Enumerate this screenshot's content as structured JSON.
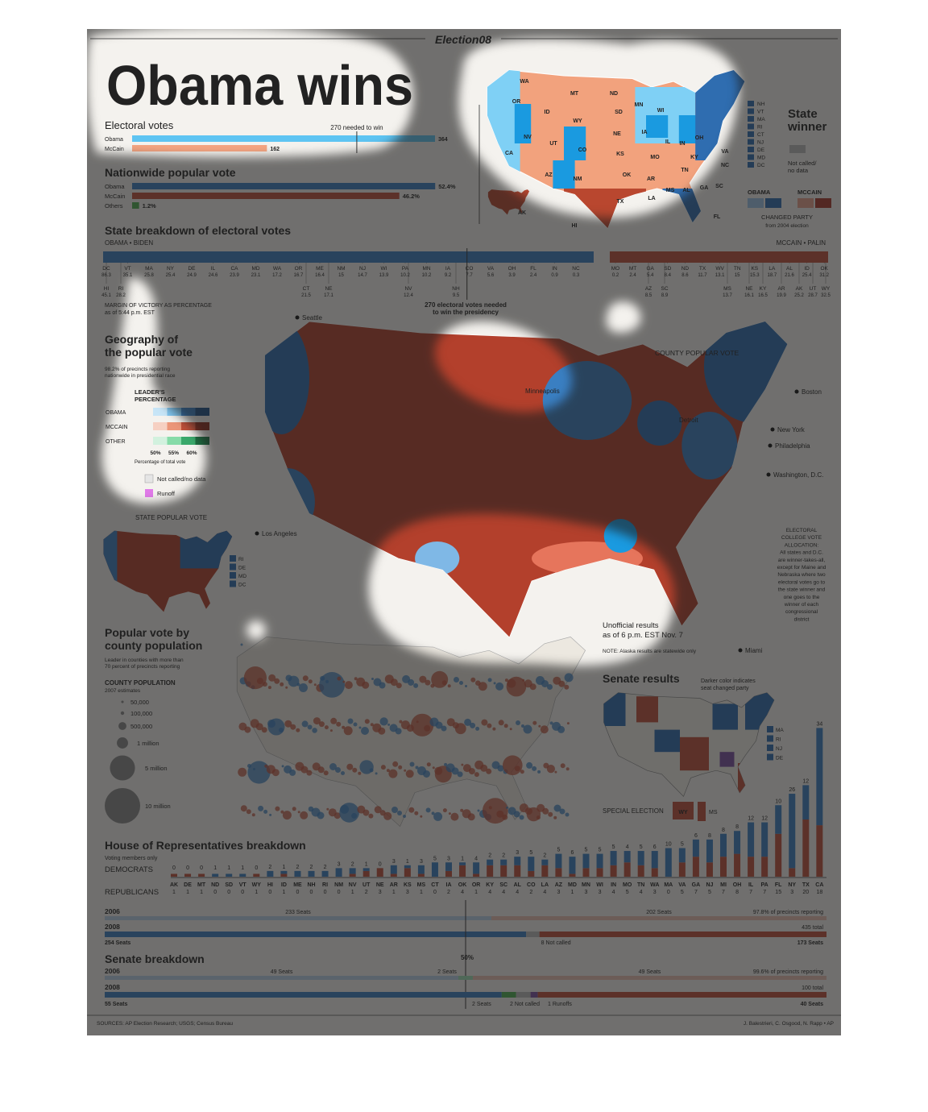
{
  "header": {
    "brand": "Election08",
    "title": "Obama wins"
  },
  "electoral_votes": {
    "title": "Electoral votes",
    "threshold_label": "270 needed to win",
    "threshold": 270,
    "series": [
      {
        "name": "Obama",
        "value": 364,
        "color": "#5ec4f2"
      },
      {
        "name": "McCain",
        "value": 162,
        "color": "#f4a582"
      }
    ]
  },
  "popular_vote": {
    "title": "Nationwide popular vote",
    "series": [
      {
        "name": "Obama",
        "value": 52.4,
        "value_label": "52.4%",
        "color": "#3a7fc2"
      },
      {
        "name": "McCain",
        "value": 46.2,
        "value_label": "46.2%",
        "color": "#c0503a"
      },
      {
        "name": "Others",
        "value": 1.2,
        "value_label": "1.2%",
        "color": "#4caf50"
      }
    ]
  },
  "state_winner": {
    "title": [
      "State",
      "winner"
    ],
    "not_called": [
      "Not called/",
      "no data"
    ],
    "obama": "OBAMA",
    "mccain": "MCCAIN",
    "changed": "CHANGED PARTY",
    "changed_note": "from 2004 election",
    "small_states": [
      "NH",
      "VT",
      "MA",
      "RI",
      "CT",
      "NJ",
      "DE",
      "MD",
      "DC"
    ],
    "map_labels": [
      "WA",
      "OR",
      "CA",
      "NV",
      "ID",
      "MT",
      "WY",
      "UT",
      "AZ",
      "CO",
      "NM",
      "ND",
      "SD",
      "NE",
      "KS",
      "OK",
      "TX",
      "MN",
      "IA",
      "MO",
      "AR",
      "LA",
      "WI",
      "IL",
      "IN",
      "OH",
      "KY",
      "TN",
      "MS",
      "AL",
      "GA",
      "FL",
      "SC",
      "NC",
      "VA",
      "AK",
      "HI"
    ]
  },
  "state_breakdown": {
    "title": "State breakdown of electoral votes",
    "obama_ticket": "OBAMA • BIDEN",
    "mccain_ticket": "MCCAIN • PALIN",
    "margin_note": "MARGIN OF VICTORY AS PERCENTAGE",
    "time_note": "as of 5:44 p.m. EST",
    "needed_label": [
      "270 electoral votes needed",
      "to win the presidency"
    ],
    "obama_states": [
      {
        "state": "DC",
        "margin": 86.3
      },
      {
        "state": "VT",
        "margin": 35.1
      },
      {
        "state": "MA",
        "margin": 25.8
      },
      {
        "state": "NY",
        "margin": 25.4
      },
      {
        "state": "DE",
        "margin": 24.9
      },
      {
        "state": "IL",
        "margin": 24.6
      },
      {
        "state": "CA",
        "margin": 23.9
      },
      {
        "state": "MD",
        "margin": 23.1
      },
      {
        "state": "WA",
        "margin": 17.2
      },
      {
        "state": "OR",
        "margin": 16.7
      },
      {
        "state": "ME",
        "margin": 16.4
      },
      {
        "state": "NM",
        "margin": 15
      },
      {
        "state": "NJ",
        "margin": 14.7
      },
      {
        "state": "WI",
        "margin": 13.9
      },
      {
        "state": "PA",
        "margin": 10.2
      },
      {
        "state": "MN",
        "margin": 10.2
      },
      {
        "state": "IA",
        "margin": 9.2
      },
      {
        "state": "CO",
        "margin": 7.7
      },
      {
        "state": "VA",
        "margin": 5.6
      },
      {
        "state": "OH",
        "margin": 3.9
      },
      {
        "state": "FL",
        "margin": 2.4
      },
      {
        "state": "IN",
        "margin": 0.9
      },
      {
        "state": "NC",
        "margin": 0.3
      }
    ],
    "obama_states_lower": [
      {
        "state": "HI",
        "margin": 45.1
      },
      {
        "state": "RI",
        "margin": 28.2
      },
      {
        "state": "CT",
        "margin": 21.5
      },
      {
        "state": "NE",
        "margin": 17.1
      },
      {
        "state": "NV",
        "margin": 12.4
      },
      {
        "state": "NH",
        "margin": 9.5
      }
    ],
    "mccain_states": [
      {
        "state": "MO",
        "margin": 0.2
      },
      {
        "state": "MT",
        "margin": 2.4
      },
      {
        "state": "GA",
        "margin": 5.4
      },
      {
        "state": "SD",
        "margin": 8.4
      },
      {
        "state": "ND",
        "margin": 8.6
      },
      {
        "state": "TX",
        "margin": 11.7
      },
      {
        "state": "WV",
        "margin": 13.1
      },
      {
        "state": "TN",
        "margin": 15
      },
      {
        "state": "KS",
        "margin": 15.3
      },
      {
        "state": "LA",
        "margin": 18.7
      },
      {
        "state": "AL",
        "margin": 21.6
      },
      {
        "state": "ID",
        "margin": 25.4
      },
      {
        "state": "OK",
        "margin": 31.2
      }
    ],
    "mccain_states_lower": [
      {
        "state": "AZ",
        "margin": 8.5
      },
      {
        "state": "SC",
        "margin": 8.9
      },
      {
        "state": "MS",
        "margin": 13.7
      },
      {
        "state": "NE",
        "margin": 16.1
      },
      {
        "state": "KY",
        "margin": 16.5
      },
      {
        "state": "AR",
        "margin": 19.9
      },
      {
        "state": "AK",
        "margin": 25.2
      },
      {
        "state": "UT",
        "margin": 28.7
      },
      {
        "state": "WY",
        "margin": 32.5
      }
    ]
  },
  "geography": {
    "title": [
      "Geography of",
      "the popular vote"
    ],
    "note": [
      "98.2% of precincts reporting",
      "nationwide in presidential race"
    ],
    "legend_title": [
      "LEADER'S",
      "PERCENTAGE"
    ],
    "rows": [
      "OBAMA",
      "MCCAIN",
      "OTHER"
    ],
    "ticks": [
      "50%",
      "55%",
      "60%"
    ],
    "tick_caption": "Percentage of total vote",
    "not_called": "Not called/no data",
    "runoff": "Runoff",
    "state_popular_vote": "STATE POPULAR VOTE",
    "small_states": [
      "RI",
      "DE",
      "MD",
      "DC"
    ]
  },
  "county_map": {
    "title": "COUNTY POPULAR VOTE",
    "cities": [
      "Seattle",
      "Minneapolis",
      "Detroit",
      "Boston",
      "New York",
      "Philadelphia",
      "Washington, D.C.",
      "Los Angeles",
      "Miami"
    ],
    "allocation": [
      "ELECTORAL",
      "COLLEGE VOTE",
      "ALLOCATION:",
      "All states and D.C.",
      "are winner-takes-all,",
      "except for Maine and",
      "Nebraska where two",
      "electoral votes go to",
      "the state winner and",
      "one goes to the",
      "winner of each",
      "congressional",
      "district"
    ],
    "unofficial": [
      "Unofficial results",
      "as of 6 p.m. EST Nov. 7"
    ],
    "alaska_note": "NOTE: Alaska results are statewide only"
  },
  "county_population": {
    "title": [
      "Popular vote by",
      "county population"
    ],
    "note": [
      "Leader in counties with more than",
      "70 percent of precincts reporting"
    ],
    "legend_title": "COUNTY POPULATION",
    "legend_subtitle": "2007 estimates",
    "sizes": [
      {
        "value": 50000,
        "label": "50,000"
      },
      {
        "value": 100000,
        "label": "100,000"
      },
      {
        "value": 500000,
        "label": "500,000"
      },
      {
        "value": 1000000,
        "label": "1 million"
      },
      {
        "value": 5000000,
        "label": "5 million"
      },
      {
        "value": 10000000,
        "label": "10 million"
      }
    ]
  },
  "senate_results": {
    "title": "Senate results",
    "note": [
      "Darker color indicates",
      "seat changed party"
    ],
    "small_states": [
      "MA",
      "RI",
      "NJ",
      "DE"
    ],
    "special": "SPECIAL ELECTION",
    "special_states": [
      "WY",
      "MS"
    ]
  },
  "house": {
    "title": "House of Representatives breakdown",
    "subtitle": "Voting members only",
    "dem_label": "DEMOCRATS",
    "rep_label": "REPUBLICANS",
    "dem_color": "#3a7fc2",
    "rep_color": "#c0503a",
    "states": [
      {
        "state": "AK",
        "dem": 0,
        "rep": 1
      },
      {
        "state": "DE",
        "dem": 0,
        "rep": 1
      },
      {
        "state": "MT",
        "dem": 0,
        "rep": 1
      },
      {
        "state": "ND",
        "dem": 1,
        "rep": 0
      },
      {
        "state": "SD",
        "dem": 1,
        "rep": 0
      },
      {
        "state": "VT",
        "dem": 1,
        "rep": 0
      },
      {
        "state": "WY",
        "dem": 0,
        "rep": 1
      },
      {
        "state": "HI",
        "dem": 2,
        "rep": 0
      },
      {
        "state": "ID",
        "dem": 1,
        "rep": 1
      },
      {
        "state": "ME",
        "dem": 2,
        "rep": 0
      },
      {
        "state": "NH",
        "dem": 2,
        "rep": 0
      },
      {
        "state": "RI",
        "dem": 2,
        "rep": 0
      },
      {
        "state": "NM",
        "dem": 3,
        "rep": 0
      },
      {
        "state": "NV",
        "dem": 2,
        "rep": 1
      },
      {
        "state": "UT",
        "dem": 1,
        "rep": 2
      },
      {
        "state": "NE",
        "dem": 0,
        "rep": 3
      },
      {
        "state": "AR",
        "dem": 3,
        "rep": 1
      },
      {
        "state": "KS",
        "dem": 1,
        "rep": 3
      },
      {
        "state": "MS",
        "dem": 3,
        "rep": 1
      },
      {
        "state": "CT",
        "dem": 5,
        "rep": 0
      },
      {
        "state": "IA",
        "dem": 3,
        "rep": 2
      },
      {
        "state": "OK",
        "dem": 1,
        "rep": 4
      },
      {
        "state": "OR",
        "dem": 4,
        "rep": 1
      },
      {
        "state": "KY",
        "dem": 2,
        "rep": 4
      },
      {
        "state": "SC",
        "dem": 2,
        "rep": 4
      },
      {
        "state": "AL",
        "dem": 3,
        "rep": 4
      },
      {
        "state": "CO",
        "dem": 5,
        "rep": 2
      },
      {
        "state": "LA",
        "dem": 2,
        "rep": 4
      },
      {
        "state": "AZ",
        "dem": 5,
        "rep": 3
      },
      {
        "state": "MD",
        "dem": 6,
        "rep": 1
      },
      {
        "state": "MN",
        "dem": 5,
        "rep": 3
      },
      {
        "state": "WI",
        "dem": 5,
        "rep": 3
      },
      {
        "state": "IN",
        "dem": 5,
        "rep": 4
      },
      {
        "state": "MO",
        "dem": 4,
        "rep": 5
      },
      {
        "state": "TN",
        "dem": 5,
        "rep": 4
      },
      {
        "state": "WA",
        "dem": 6,
        "rep": 3
      },
      {
        "state": "MA",
        "dem": 10,
        "rep": 0
      },
      {
        "state": "VA",
        "dem": 5,
        "rep": 5
      },
      {
        "state": "GA",
        "dem": 6,
        "rep": 7
      },
      {
        "state": "NJ",
        "dem": 8,
        "rep": 5
      },
      {
        "state": "MI",
        "dem": 8,
        "rep": 7
      },
      {
        "state": "OH",
        "dem": 8,
        "rep": 8
      },
      {
        "state": "IL",
        "dem": 12,
        "rep": 7
      },
      {
        "state": "PA",
        "dem": 12,
        "rep": 7
      },
      {
        "state": "FL",
        "dem": 10,
        "rep": 15
      },
      {
        "state": "NY",
        "dem": 26,
        "rep": 3
      },
      {
        "state": "TX",
        "dem": 12,
        "rep": 20
      },
      {
        "state": "CA",
        "dem": 34,
        "rep": 18
      }
    ]
  },
  "house_breakdown": {
    "y2006": "2006",
    "y2008": "2008",
    "s2006": [
      {
        "value": 233,
        "label": "233 Seats"
      },
      {
        "value": 202,
        "label": "202 Seats"
      }
    ],
    "reporting": "97.8% of precincts reporting",
    "total": "435 total",
    "s2008": [
      {
        "value": 254,
        "label": "254 Seats"
      },
      {
        "value": 8,
        "label": "8 Not called"
      },
      {
        "value": 173,
        "label": "173 Seats"
      }
    ]
  },
  "senate_breakdown": {
    "title": "Senate breakdown",
    "half": "50%",
    "y2006": "2006",
    "y2008": "2008",
    "s2006": [
      {
        "value": 49,
        "label": "49 Seats"
      },
      {
        "value": 2,
        "label": "2 Seats"
      },
      {
        "value": 49,
        "label": "49 Seats"
      }
    ],
    "reporting": "99.6% of precincts reporting",
    "total": "100 total",
    "s2008": [
      {
        "value": 55,
        "label": "55 Seats"
      },
      {
        "value": 2,
        "label": "2 Seats"
      },
      {
        "value": 2,
        "label": "2 Not called"
      },
      {
        "value": 1,
        "label": "1 Runoffs"
      },
      {
        "value": 40,
        "label": "40 Seats"
      }
    ]
  },
  "footer": {
    "sources": "SOURCES: AP Election Research; USGS; Census Bureau",
    "credit": "J. Balestrieri, C. Osgood, N. Rapp • AP"
  }
}
